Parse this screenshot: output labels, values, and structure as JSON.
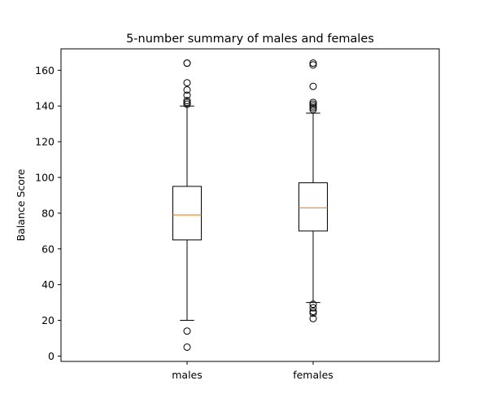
{
  "chart_data": {
    "type": "box",
    "title": "5-number summary of males and females",
    "xlabel": "",
    "ylabel": "Balance Score",
    "ylim": [
      -3,
      172
    ],
    "yticks": [
      0,
      20,
      40,
      60,
      80,
      100,
      120,
      140,
      160
    ],
    "grid": false,
    "categories": [
      "males",
      "females"
    ],
    "boxes": [
      {
        "name": "males",
        "whisker_low": 20,
        "q1": 65,
        "median": 79,
        "q3": 95,
        "whisker_high": 140,
        "outliers": [
          5,
          14,
          141,
          142,
          143,
          146,
          149,
          153,
          164,
          164
        ]
      },
      {
        "name": "females",
        "whisker_low": 30,
        "q1": 70,
        "median": 83,
        "q3": 97,
        "whisker_high": 136,
        "outliers": [
          21,
          24,
          25,
          27,
          29,
          138,
          139,
          140,
          141,
          142,
          151,
          163,
          164
        ]
      }
    ],
    "colors": {
      "box": "#000000",
      "median": "#ff7f0e",
      "outlier": "#000000"
    }
  }
}
